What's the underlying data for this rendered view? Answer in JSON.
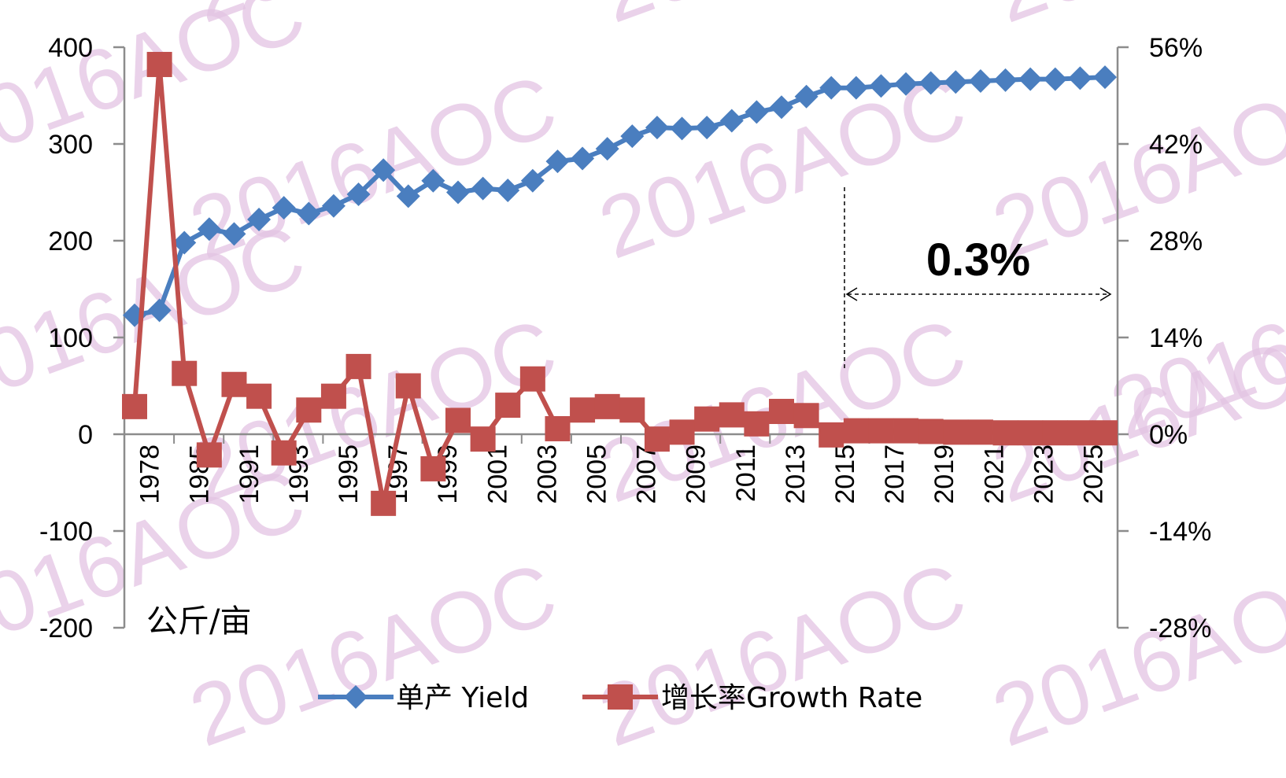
{
  "chart_data": {
    "type": "line",
    "unit_label": "公斤/亩",
    "annotation": "0.3%",
    "watermark": "2016AOC",
    "y_left": {
      "min": -200,
      "max": 400,
      "ticks": [
        "400",
        "300",
        "200",
        "100",
        "0",
        "-100",
        "-200"
      ]
    },
    "y_right": {
      "min": -0.28,
      "max": 0.56,
      "ticks": [
        "56%",
        "42%",
        "28%",
        "14%",
        "0%",
        "-14%",
        "-28%"
      ]
    },
    "x_tick_labels": [
      "1978",
      "1985",
      "1991",
      "1993",
      "1995",
      "1997",
      "1999",
      "2001",
      "2003",
      "2005",
      "2007",
      "2009",
      "2011",
      "2013",
      "2015",
      "2017",
      "2019",
      "2021",
      "2023",
      "2025"
    ],
    "series": [
      {
        "name": "单产 Yield",
        "color": "#4a7ebf",
        "marker": "diamond",
        "axis": "left",
        "values": [
          123,
          128,
          198,
          212,
          207,
          222,
          234,
          228,
          236,
          248,
          273,
          246,
          262,
          250,
          254,
          252,
          262,
          282,
          285,
          295,
          308,
          317,
          316,
          317,
          324,
          333,
          338,
          349,
          358,
          358,
          360,
          362,
          363,
          364,
          365,
          366,
          367,
          367,
          368,
          369
        ]
      },
      {
        "name": "增长率Growth Rate",
        "color": "#c0504d",
        "marker": "square",
        "axis": "right",
        "values": [
          0.04,
          0.535,
          0.088,
          -0.03,
          0.072,
          0.055,
          -0.027,
          0.035,
          0.055,
          0.098,
          -0.1,
          0.07,
          -0.05,
          0.02,
          -0.007,
          0.042,
          0.08,
          0.008,
          0.035,
          0.04,
          0.035,
          -0.007,
          0.003,
          0.022,
          0.028,
          0.015,
          0.033,
          0.027,
          -0.001,
          0.005,
          0.005,
          0.005,
          0.004,
          0.003,
          0.003,
          0.002,
          0.002,
          0.002,
          0.002,
          0.002
        ]
      }
    ],
    "legend_position": "bottom"
  }
}
